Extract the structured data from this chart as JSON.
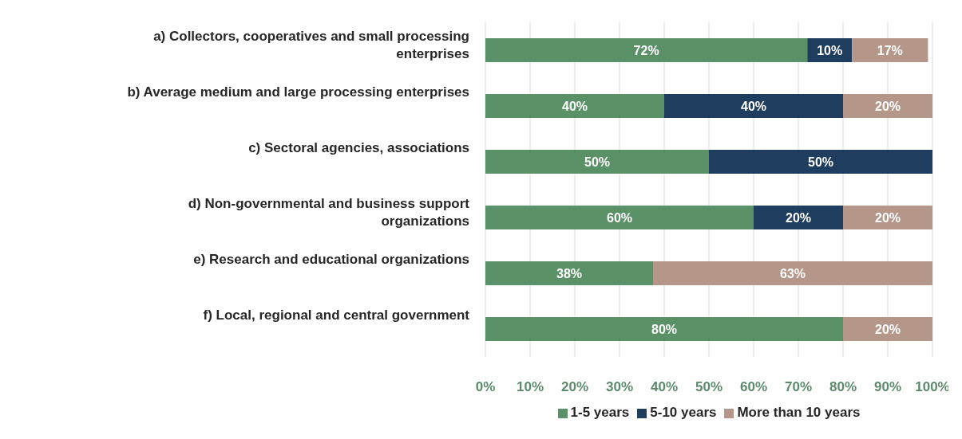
{
  "chart_data": {
    "type": "bar",
    "orientation": "horizontal",
    "stacked": true,
    "categories": [
      "a) Collectors, cooperatives and small processing enterprises",
      "b) Average medium and large processing enterprises",
      "c) Sectoral agencies, associations",
      "d) Non-governmental and business support organizations",
      "e) Research and educational organizations",
      "f) Local, regional and central government"
    ],
    "series": [
      {
        "name": "1-5 years",
        "color": "#5b9167",
        "values": [
          72,
          40,
          50,
          60,
          37.5,
          80
        ],
        "value_labels": [
          "72%",
          "40%",
          "50%",
          "60%",
          "38%",
          "80%"
        ]
      },
      {
        "name": "5-10 years",
        "color": "#1f3d5e",
        "values": [
          10,
          40,
          50,
          20,
          null,
          null
        ],
        "value_labels": [
          "10%",
          "40%",
          "50%",
          "20%",
          null,
          null
        ]
      },
      {
        "name": "More than 10 years",
        "color": "#b5978a",
        "values": [
          17,
          20,
          null,
          20,
          62.5,
          20
        ],
        "value_labels": [
          "17%",
          "20%",
          null,
          "20%",
          "63%",
          "20%"
        ]
      }
    ],
    "xlim": [
      0,
      100
    ],
    "xticks": [
      {
        "value": 0,
        "label": "0%"
      },
      {
        "value": 10,
        "label": "10%"
      },
      {
        "value": 20,
        "label": "20%"
      },
      {
        "value": 30,
        "label": "30%"
      },
      {
        "value": 40,
        "label": "40%"
      },
      {
        "value": 50,
        "label": "50%"
      },
      {
        "value": 60,
        "label": "60%"
      },
      {
        "value": 70,
        "label": "70%"
      },
      {
        "value": 80,
        "label": "80%"
      },
      {
        "value": 90,
        "label": "90%"
      },
      {
        "value": 100,
        "label": "100%"
      }
    ],
    "grid": "x",
    "legend": "bottom"
  }
}
